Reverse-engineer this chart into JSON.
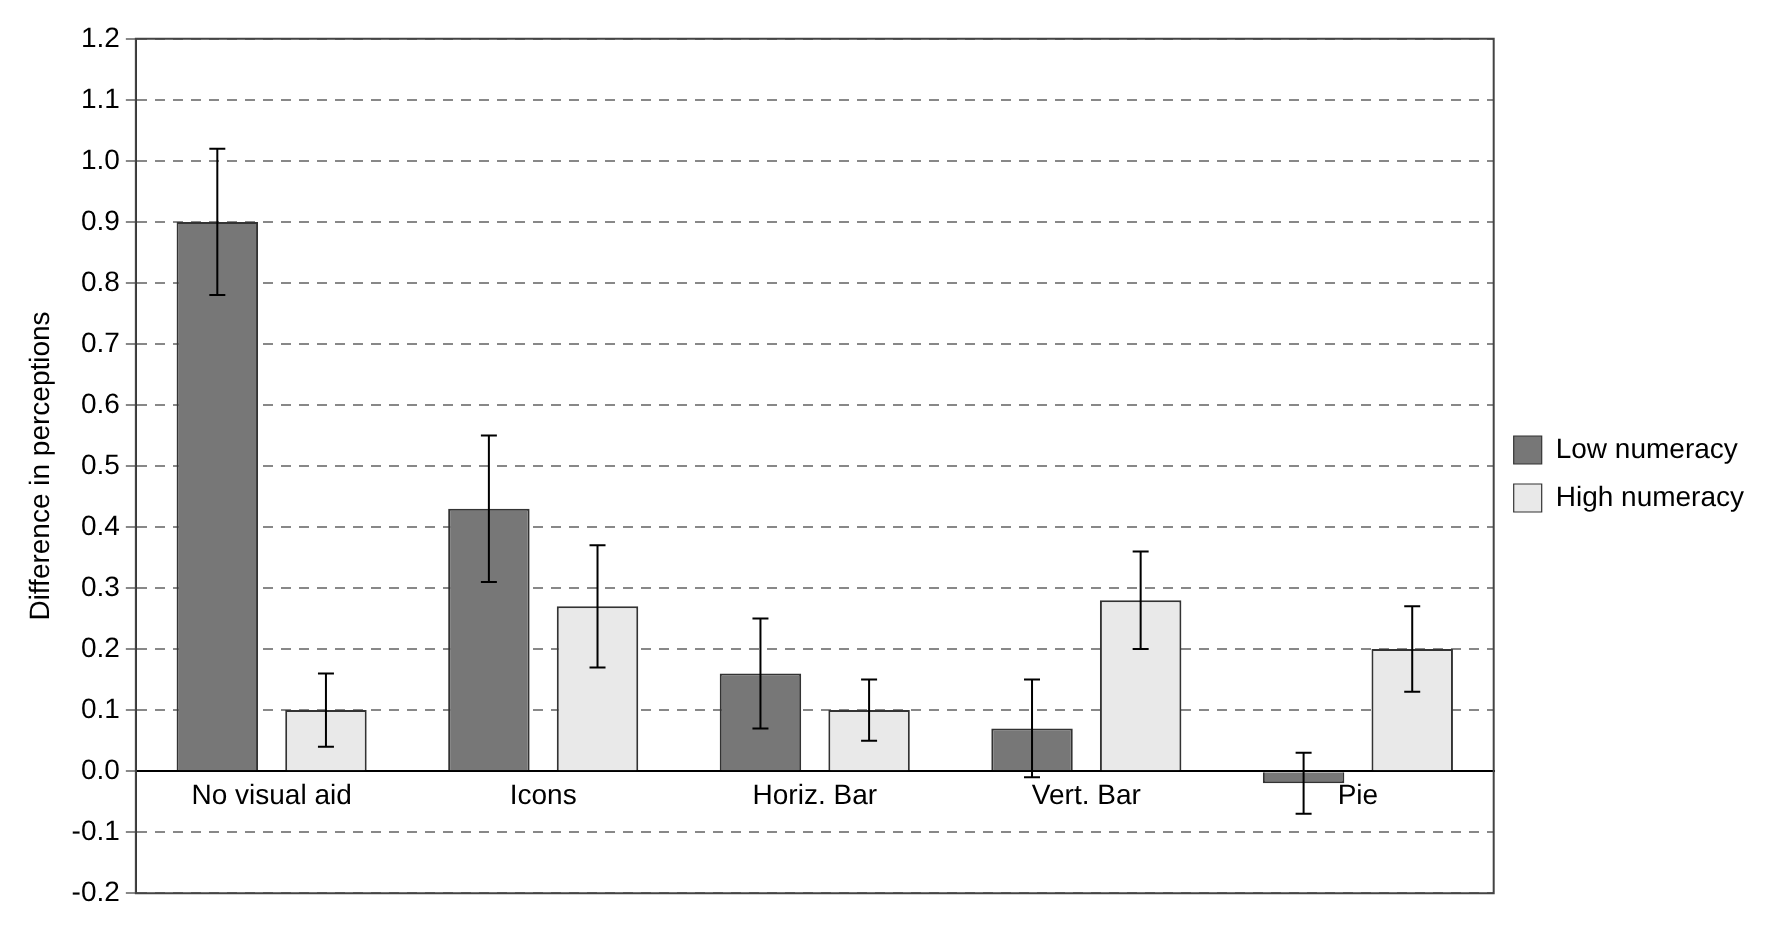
{
  "chart_data": {
    "type": "bar",
    "ylabel": "Difference in perceptions",
    "categories": [
      "No visual aid",
      "Icons",
      "Horiz. Bar",
      "Vert. Bar",
      "Pie"
    ],
    "series": [
      {
        "name": "Low numeracy",
        "color": "#777777",
        "values": [
          0.9,
          0.43,
          0.16,
          0.07,
          -0.02
        ],
        "errors": [
          0.12,
          0.12,
          0.09,
          0.08,
          0.05
        ]
      },
      {
        "name": "High numeracy",
        "color": "#e9e9e9",
        "values": [
          0.1,
          0.27,
          0.1,
          0.28,
          0.2
        ],
        "errors": [
          0.06,
          0.1,
          0.05,
          0.08,
          0.07
        ]
      }
    ],
    "ylim": [
      -0.2,
      1.2
    ],
    "yticks": [
      {
        "value": -0.2,
        "label": "-0.2"
      },
      {
        "value": -0.1,
        "label": "-0.1"
      },
      {
        "value": 0,
        "label": "0.0"
      },
      {
        "value": 0.1,
        "label": "0.1"
      },
      {
        "value": 0.2,
        "label": "0.2"
      },
      {
        "value": 0.3,
        "label": "0.3"
      },
      {
        "value": 0.4,
        "label": "0.4"
      },
      {
        "value": 0.5,
        "label": "0.5"
      },
      {
        "value": 0.6,
        "label": "0.6"
      },
      {
        "value": 0.7,
        "label": "0.7"
      },
      {
        "value": 0.8,
        "label": "0.8"
      },
      {
        "value": 0.9,
        "label": "0.9"
      },
      {
        "value": 1.0,
        "label": "1.0"
      },
      {
        "value": 1.1,
        "label": "1.1"
      },
      {
        "value": 1.2,
        "label": "1.2"
      }
    ],
    "grid": "y",
    "legend": "right"
  }
}
